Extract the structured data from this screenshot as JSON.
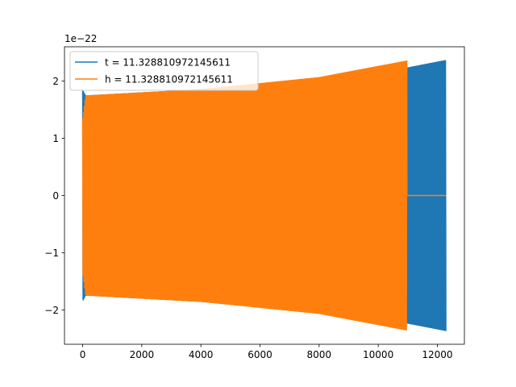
{
  "chart_data": {
    "type": "line",
    "title": "",
    "xlabel": "",
    "ylabel": "",
    "y_offset_label": "1e−22",
    "y_scale": 1e-22,
    "xlim": [
      -615,
      12915
    ],
    "ylim": [
      -2.6e-22,
      2.6e-22
    ],
    "x_ticks": [
      0,
      2000,
      4000,
      6000,
      8000,
      10000,
      12000
    ],
    "x_tick_labels": [
      "0",
      "2000",
      "4000",
      "6000",
      "8000",
      "10000",
      "12000"
    ],
    "y_ticks": [
      -2e-22,
      -1e-22,
      0,
      1e-22,
      2e-22
    ],
    "y_tick_labels": [
      "−2",
      "−1",
      "0",
      "1",
      "2"
    ],
    "grid": false,
    "legend_position": "upper-left",
    "series": [
      {
        "name": "t = 11.328810972145611",
        "color": "#1f77b4",
        "x_start": 0,
        "x_end": 12300,
        "envelope": [
          {
            "x": 0,
            "amp": 1.85e-22
          },
          {
            "x": 100,
            "amp": 1.75e-22
          },
          {
            "x": 4000,
            "amp": 1.86e-22
          },
          {
            "x": 8000,
            "amp": 2.05e-22
          },
          {
            "x": 11000,
            "amp": 2.24e-22
          },
          {
            "x": 12300,
            "amp": 2.37e-22
          }
        ]
      },
      {
        "name": "h = 11.328810972145611",
        "color": "#ff7f0e",
        "x_start": 0,
        "x_end": 12300,
        "active_until": 10970,
        "envelope": [
          {
            "x": 0,
            "amp": 1.35e-22
          },
          {
            "x": 100,
            "amp": 1.75e-22
          },
          {
            "x": 4000,
            "amp": 1.86e-22
          },
          {
            "x": 8000,
            "amp": 2.07e-22
          },
          {
            "x": 10970,
            "amp": 2.36e-22
          }
        ]
      }
    ]
  }
}
